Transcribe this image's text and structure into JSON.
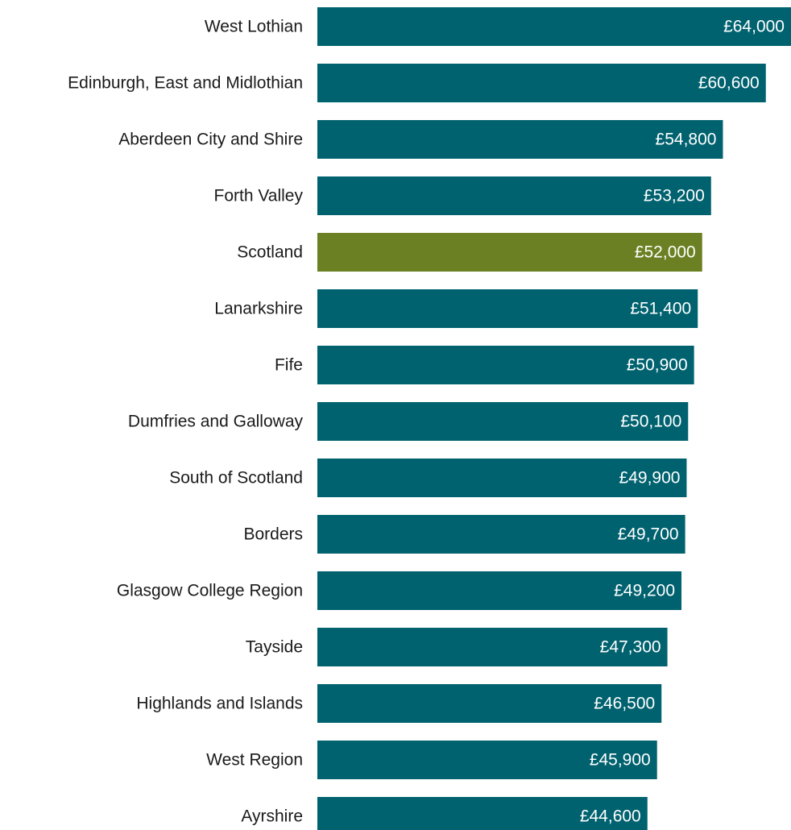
{
  "chart_data": {
    "type": "barh",
    "categories": [
      "West Lothian",
      "Edinburgh, East and Midlothian",
      "Aberdeen City and Shire",
      "Forth Valley",
      "Scotland",
      "Lanarkshire",
      "Fife",
      "Dumfries and Galloway",
      "South of Scotland",
      "Borders",
      "Glasgow College Region",
      "Tayside",
      "Highlands and Islands",
      "West Region",
      "Ayrshire"
    ],
    "values": [
      64000,
      60600,
      54800,
      53200,
      52000,
      51400,
      50900,
      50100,
      49900,
      49700,
      49200,
      47300,
      46500,
      45900,
      44600
    ],
    "value_labels": [
      "£64,000",
      "£60,600",
      "£54,800",
      "£53,200",
      "£52,000",
      "£51,400",
      "£50,900",
      "£50,100",
      "£49,900",
      "£49,700",
      "£49,200",
      "£47,300",
      "£46,500",
      "£45,900",
      "£44,600"
    ],
    "colors": [
      "#00626f",
      "#00626f",
      "#00626f",
      "#00626f",
      "#6b8023",
      "#00626f",
      "#00626f",
      "#00626f",
      "#00626f",
      "#00626f",
      "#00626f",
      "#00626f",
      "#00626f",
      "#00626f",
      "#00626f"
    ],
    "xlim": [
      0,
      64000
    ]
  }
}
